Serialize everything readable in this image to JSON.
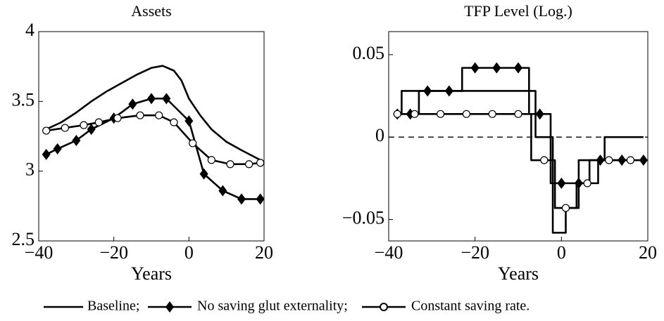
{
  "chart_data": [
    {
      "type": "line",
      "title": "Assets",
      "xlabel": "Years",
      "xlim": [
        -40,
        20
      ],
      "xticks": [
        {
          "value": -40,
          "label": "−40"
        },
        {
          "value": -20,
          "label": "−20"
        },
        0,
        20
      ],
      "ylim": [
        2.5,
        4
      ],
      "yticks": [
        2.5,
        3,
        3.5,
        4
      ],
      "series": [
        {
          "name": "Baseline;",
          "color": "#000000",
          "marker": "none",
          "x": [
            -38,
            -34,
            -30,
            -26,
            -22,
            -18,
            -14,
            -10,
            -7,
            -4,
            -2,
            0,
            3,
            6,
            10,
            14,
            19
          ],
          "values": [
            3.3,
            3.35,
            3.42,
            3.5,
            3.57,
            3.63,
            3.69,
            3.74,
            3.755,
            3.72,
            3.65,
            3.52,
            3.4,
            3.3,
            3.21,
            3.15,
            3.08
          ]
        },
        {
          "name": "No saving glut externality;",
          "color": "#000000",
          "marker": "diamond",
          "x": [
            -38,
            -35,
            -30,
            -26,
            -20,
            -15,
            -10,
            -6,
            0,
            4,
            9,
            14,
            19
          ],
          "values": [
            3.12,
            3.16,
            3.22,
            3.3,
            3.38,
            3.48,
            3.52,
            3.52,
            3.36,
            2.98,
            2.86,
            2.8,
            2.8
          ]
        },
        {
          "name": "Constant saving rate.",
          "color": "#000000",
          "marker": "circle",
          "x": [
            -38,
            -33,
            -28,
            -24,
            -19,
            -13,
            -8,
            -4,
            1,
            6,
            11,
            16,
            19
          ],
          "values": [
            3.29,
            3.31,
            3.33,
            3.35,
            3.38,
            3.4,
            3.4,
            3.35,
            3.2,
            3.08,
            3.05,
            3.05,
            3.06
          ]
        }
      ]
    },
    {
      "type": "line",
      "title": "TFP Level (Log.)",
      "xlabel": "Years",
      "step": true,
      "xlim": [
        -40,
        20
      ],
      "xticks": [
        {
          "value": -40,
          "label": "−40"
        },
        {
          "value": -20,
          "label": "−20"
        },
        0,
        20
      ],
      "ylim": [
        -0.063,
        0.064
      ],
      "yticks": [
        {
          "value": -0.05,
          "label": "−0.05"
        },
        0,
        0.05
      ],
      "reference_line": {
        "value": 0,
        "style": "dashed"
      },
      "series": [
        {
          "color": "#000000",
          "marker": "none",
          "x": [
            -38,
            -36,
            -8,
            -4,
            0,
            2,
            6,
            14,
            19
          ],
          "values": [
            0.014,
            0.028,
            0.028,
            0,
            -0.058,
            -0.043,
            -0.014,
            0,
            0
          ]
        },
        {
          "color": "#000000",
          "marker": "diamond",
          "x": [
            -38,
            -35,
            -31,
            -26,
            -20,
            -15,
            -10,
            -5,
            0,
            4,
            9,
            14,
            19
          ],
          "values": [
            0.014,
            0.014,
            0.028,
            0.028,
            0.042,
            0.042,
            0.042,
            0.014,
            -0.028,
            -0.028,
            -0.014,
            -0.014,
            -0.014
          ]
        },
        {
          "color": "#000000",
          "marker": "circle",
          "x": [
            -38,
            -34,
            -28,
            -22,
            -16,
            -10,
            -4,
            1,
            6,
            11,
            16
          ],
          "values": [
            0.014,
            0.014,
            0.014,
            0.014,
            0.014,
            0.014,
            -0.014,
            -0.043,
            -0.028,
            -0.014,
            -0.014
          ]
        }
      ]
    }
  ]
}
